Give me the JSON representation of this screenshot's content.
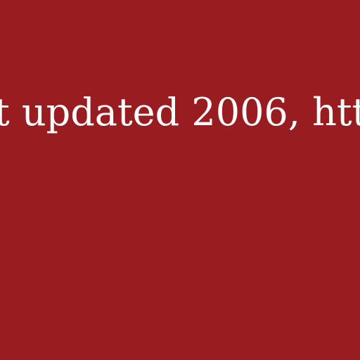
{
  "background_color": "#981c20",
  "text_color": "#ffffff",
  "caption": {
    "text": "t updated 2006, htt"
  }
}
